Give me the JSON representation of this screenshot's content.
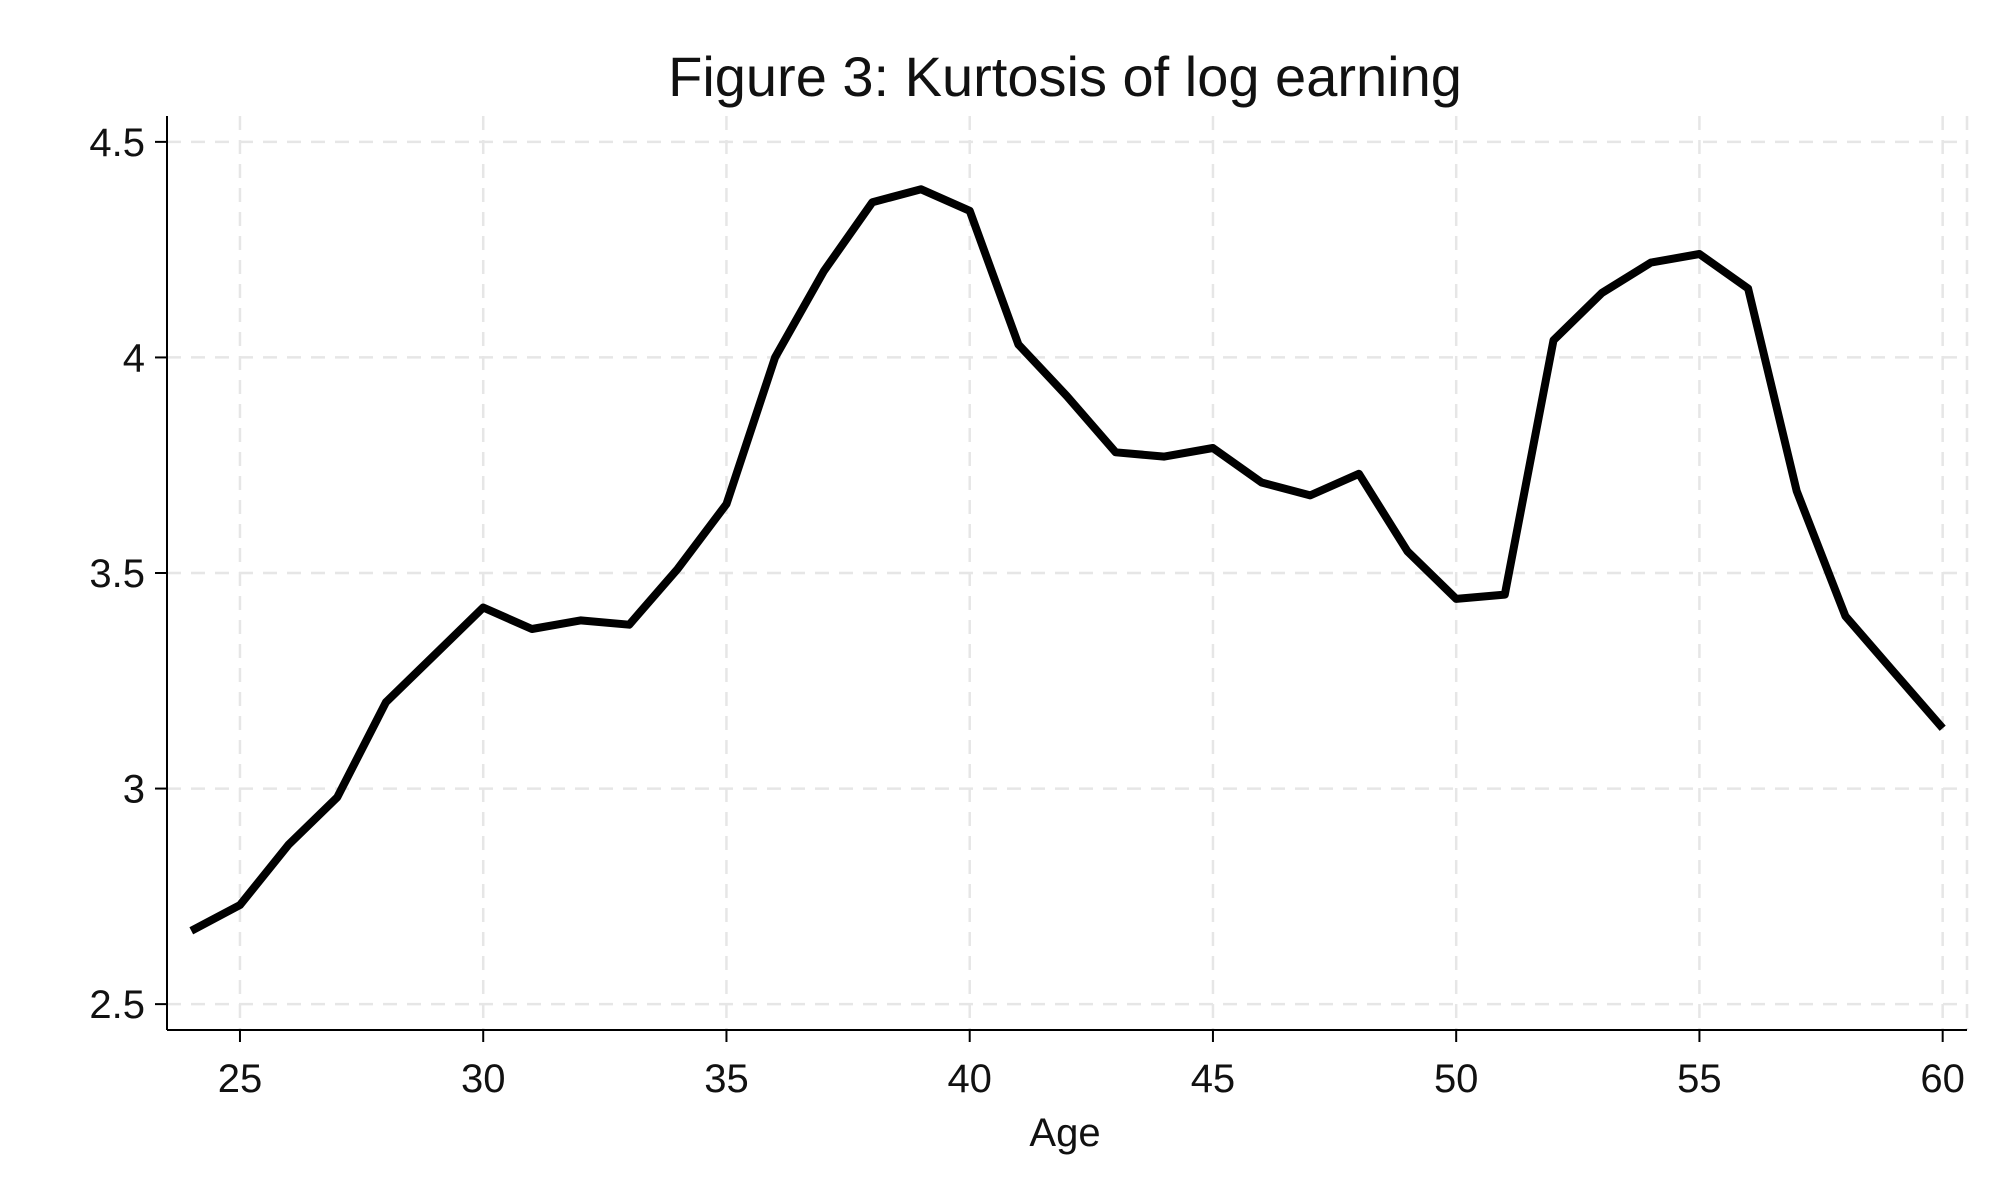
{
  "chart_data": {
    "type": "line",
    "title": "Figure 3: Kurtosis of log earning",
    "xlabel": "Age",
    "ylabel": "",
    "xlim": [
      23.5,
      60.5
    ],
    "ylim": [
      2.44,
      4.56
    ],
    "xticks": [
      25,
      30,
      35,
      40,
      45,
      50,
      55,
      60
    ],
    "yticks": [
      2.5,
      3,
      3.5,
      4,
      4.5
    ],
    "ytick_labels": [
      "2.5",
      "3",
      "3.5",
      "4",
      "4.5"
    ],
    "xtick_labels": [
      "25",
      "30",
      "35",
      "40",
      "45",
      "50",
      "55",
      "60"
    ],
    "grid": true,
    "legend": "none",
    "series": [
      {
        "color": "#000000",
        "x": [
          24,
          25,
          26,
          27,
          28,
          29,
          30,
          31,
          32,
          33,
          34,
          35,
          36,
          37,
          38,
          39,
          40,
          41,
          42,
          43,
          44,
          45,
          46,
          47,
          48,
          49,
          50,
          51,
          52,
          53,
          54,
          55,
          56,
          57,
          58,
          59,
          60
        ],
        "values": [
          2.67,
          2.73,
          2.87,
          2.98,
          3.2,
          3.31,
          3.42,
          3.37,
          3.39,
          3.38,
          3.51,
          3.66,
          4.0,
          4.2,
          4.36,
          4.39,
          4.34,
          4.03,
          3.91,
          3.78,
          3.77,
          3.79,
          3.71,
          3.68,
          3.73,
          3.55,
          3.44,
          3.45,
          4.04,
          4.15,
          4.22,
          4.24,
          4.16,
          3.69,
          3.4,
          3.27,
          3.14
        ]
      }
    ]
  }
}
